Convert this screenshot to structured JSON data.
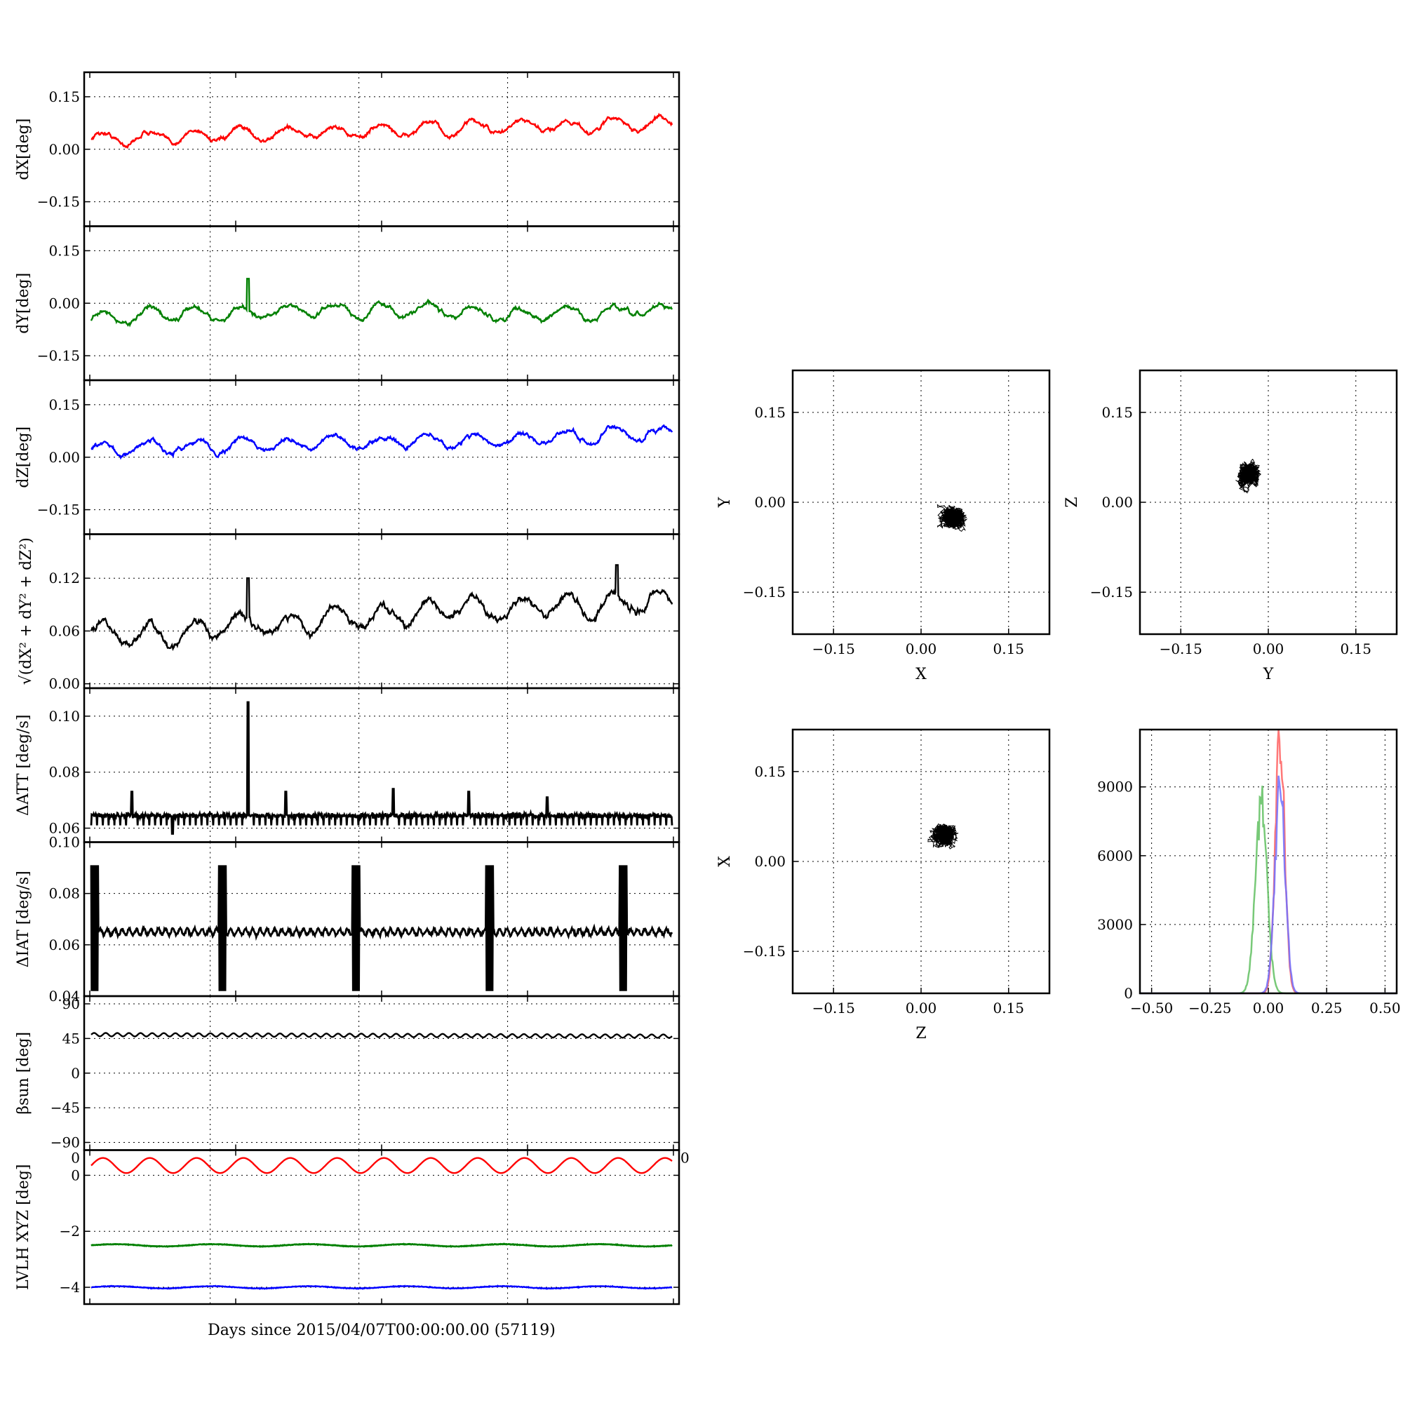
{
  "chart_data": [
    {
      "type": "line",
      "ylabel": "dX[deg]",
      "ylim": [
        -0.22,
        0.22
      ],
      "yticks": [
        "0.15",
        "0.00",
        "−0.15"
      ],
      "ytick_values": [
        0.15,
        0.0,
        -0.15
      ],
      "grid": true,
      "series": [
        {
          "color": "#ff0000",
          "mean_values": [
            0.03,
            0.035,
            0.04,
            0.045,
            0.05,
            0.055,
            0.06,
            0.065,
            0.07,
            0.075
          ]
        }
      ]
    },
    {
      "type": "line",
      "ylabel": "dY[deg]",
      "ylim": [
        -0.22,
        0.22
      ],
      "yticks": [
        "0.15",
        "0.00",
        "−0.15"
      ],
      "ytick_values": [
        0.15,
        0.0,
        -0.15
      ],
      "grid": true,
      "series": [
        {
          "color": "#008000",
          "mean_values": [
            -0.05,
            -0.03,
            -0.03,
            -0.02,
            -0.02,
            -0.02,
            -0.03,
            -0.03,
            -0.03,
            -0.02
          ]
        }
      ]
    },
    {
      "type": "line",
      "ylabel": "dZ[deg]",
      "ylim": [
        -0.22,
        0.22
      ],
      "yticks": [
        "0.15",
        "0.00",
        "−0.15"
      ],
      "ytick_values": [
        0.15,
        0.0,
        -0.15
      ],
      "grid": true,
      "series": [
        {
          "color": "#0000ff",
          "mean_values": [
            0.02,
            0.03,
            0.035,
            0.04,
            0.04,
            0.045,
            0.05,
            0.055,
            0.06,
            0.065
          ]
        }
      ]
    },
    {
      "type": "line",
      "ylabel": "√(dX² + dY² + dZ²)",
      "ylim": [
        -0.005,
        0.17
      ],
      "yticks": [
        "0.12",
        "0.06",
        "0.00"
      ],
      "ytick_values": [
        0.12,
        0.06,
        0.0
      ],
      "grid": true,
      "series": [
        {
          "color": "#000000",
          "mean_values": [
            0.06,
            0.055,
            0.065,
            0.07,
            0.075,
            0.08,
            0.085,
            0.088,
            0.09,
            0.095
          ]
        }
      ]
    },
    {
      "type": "line",
      "ylabel": "ΔATT [deg/s]",
      "ylim": [
        0.055,
        0.11
      ],
      "yticks": [
        "0.10",
        "0.08",
        "0.06"
      ],
      "ytick_values": [
        0.1,
        0.08,
        0.06
      ],
      "grid": true,
      "series": [
        {
          "color": "#000000",
          "baseline": 0.0645,
          "spikes": [
            [
              0.07,
              0.073
            ],
            [
              0.27,
              0.105
            ],
            [
              0.335,
              0.073
            ],
            [
              0.52,
              0.074
            ],
            [
              0.65,
              0.073
            ],
            [
              0.785,
              0.071
            ]
          ]
        }
      ]
    },
    {
      "type": "line",
      "ylabel": "ΔIAT [deg/s]",
      "ylim": [
        0.04,
        0.1
      ],
      "yticks": [
        "0.10",
        "0.08",
        "0.06",
        "0.04"
      ],
      "ytick_values": [
        0.1,
        0.08,
        0.06,
        0.04
      ],
      "grid": true,
      "series": [
        {
          "color": "#000000",
          "baseline": 0.065,
          "bursts": [
            0.0,
            0.22,
            0.45,
            0.68,
            0.91
          ]
        }
      ]
    },
    {
      "type": "line",
      "ylabel": "βsun [deg]",
      "ylim": [
        -100,
        100
      ],
      "yticks": [
        "90",
        "45",
        "0",
        "−45",
        "−90"
      ],
      "ytick_values": [
        90,
        45,
        0,
        -45,
        -90
      ],
      "grid": true,
      "series": [
        {
          "color": "#000000",
          "mean_value": 50
        }
      ]
    },
    {
      "type": "line",
      "ylabel": "LVLH XYZ [deg]",
      "ylim": [
        -4.6,
        0.9
      ],
      "yticks": [
        "0",
        "−2",
        "−4"
      ],
      "ytick_values": [
        0,
        -2,
        -4
      ],
      "grid": true,
      "xlabel": "Days since 2015/04/07T00:00:00.00 (57119)",
      "x_edge_labels": [
        "0",
        "0"
      ],
      "series": [
        {
          "color": "#ff0000",
          "mean_value": 0.35
        },
        {
          "color": "#008000",
          "mean_value": -2.5
        },
        {
          "color": "#008000",
          "mean_value": -2.5
        },
        {
          "color": "#0000ff",
          "mean_value": -4.0
        }
      ]
    },
    {
      "type": "scatter",
      "xlabel": "X",
      "ylabel": "Y",
      "xlim": [
        -0.22,
        0.22
      ],
      "ylim": [
        -0.22,
        0.22
      ],
      "xticks": [
        "−0.15",
        "0.00",
        "0.15"
      ],
      "yticks": [
        "0.15",
        "0.00",
        "−0.15"
      ],
      "tick_values": [
        -0.15,
        0.0,
        0.15
      ],
      "grid": true,
      "cluster": {
        "center": [
          0.055,
          -0.025
        ],
        "spread": [
          0.025,
          0.022
        ]
      }
    },
    {
      "type": "scatter",
      "xlabel": "Y",
      "ylabel": "Z",
      "xlim": [
        -0.22,
        0.22
      ],
      "ylim": [
        -0.22,
        0.22
      ],
      "xticks": [
        "−0.15",
        "0.00",
        "0.15"
      ],
      "yticks": [
        "0.15",
        "0.00",
        "−0.15"
      ],
      "tick_values": [
        -0.15,
        0.0,
        0.15
      ],
      "grid": true,
      "cluster": {
        "center": [
          -0.035,
          0.045
        ],
        "spread": [
          0.028,
          0.02
        ]
      }
    },
    {
      "type": "scatter",
      "xlabel": "Z",
      "ylabel": "X",
      "xlim": [
        -0.22,
        0.22
      ],
      "ylim": [
        -0.22,
        0.22
      ],
      "xticks": [
        "−0.15",
        "0.00",
        "0.15"
      ],
      "yticks": [
        "0.15",
        "0.00",
        "−0.15"
      ],
      "tick_values": [
        -0.15,
        0.0,
        0.15
      ],
      "grid": true,
      "cluster": {
        "center": [
          0.04,
          0.045
        ],
        "spread": [
          0.02,
          0.02
        ]
      }
    },
    {
      "type": "histogram",
      "xlim": [
        -0.55,
        0.55
      ],
      "ylim": [
        0,
        11500
      ],
      "xticks": [
        "−0.50",
        "−0.25",
        "0.00",
        "0.25",
        "0.50"
      ],
      "xtick_values": [
        -0.5,
        -0.25,
        0.0,
        0.25,
        0.5
      ],
      "yticks": [
        "9000",
        "6000",
        "3000",
        "0"
      ],
      "ytick_values": [
        9000,
        6000,
        3000,
        0
      ],
      "grid": true,
      "series": [
        {
          "color": "#ff6060",
          "center": 0.05,
          "peak": 11000,
          "width": 0.02
        },
        {
          "color": "#60c060",
          "center": -0.03,
          "peak": 8300,
          "width": 0.025
        },
        {
          "color": "#7070ff",
          "center": 0.05,
          "peak": 9000,
          "width": 0.022
        }
      ]
    }
  ]
}
